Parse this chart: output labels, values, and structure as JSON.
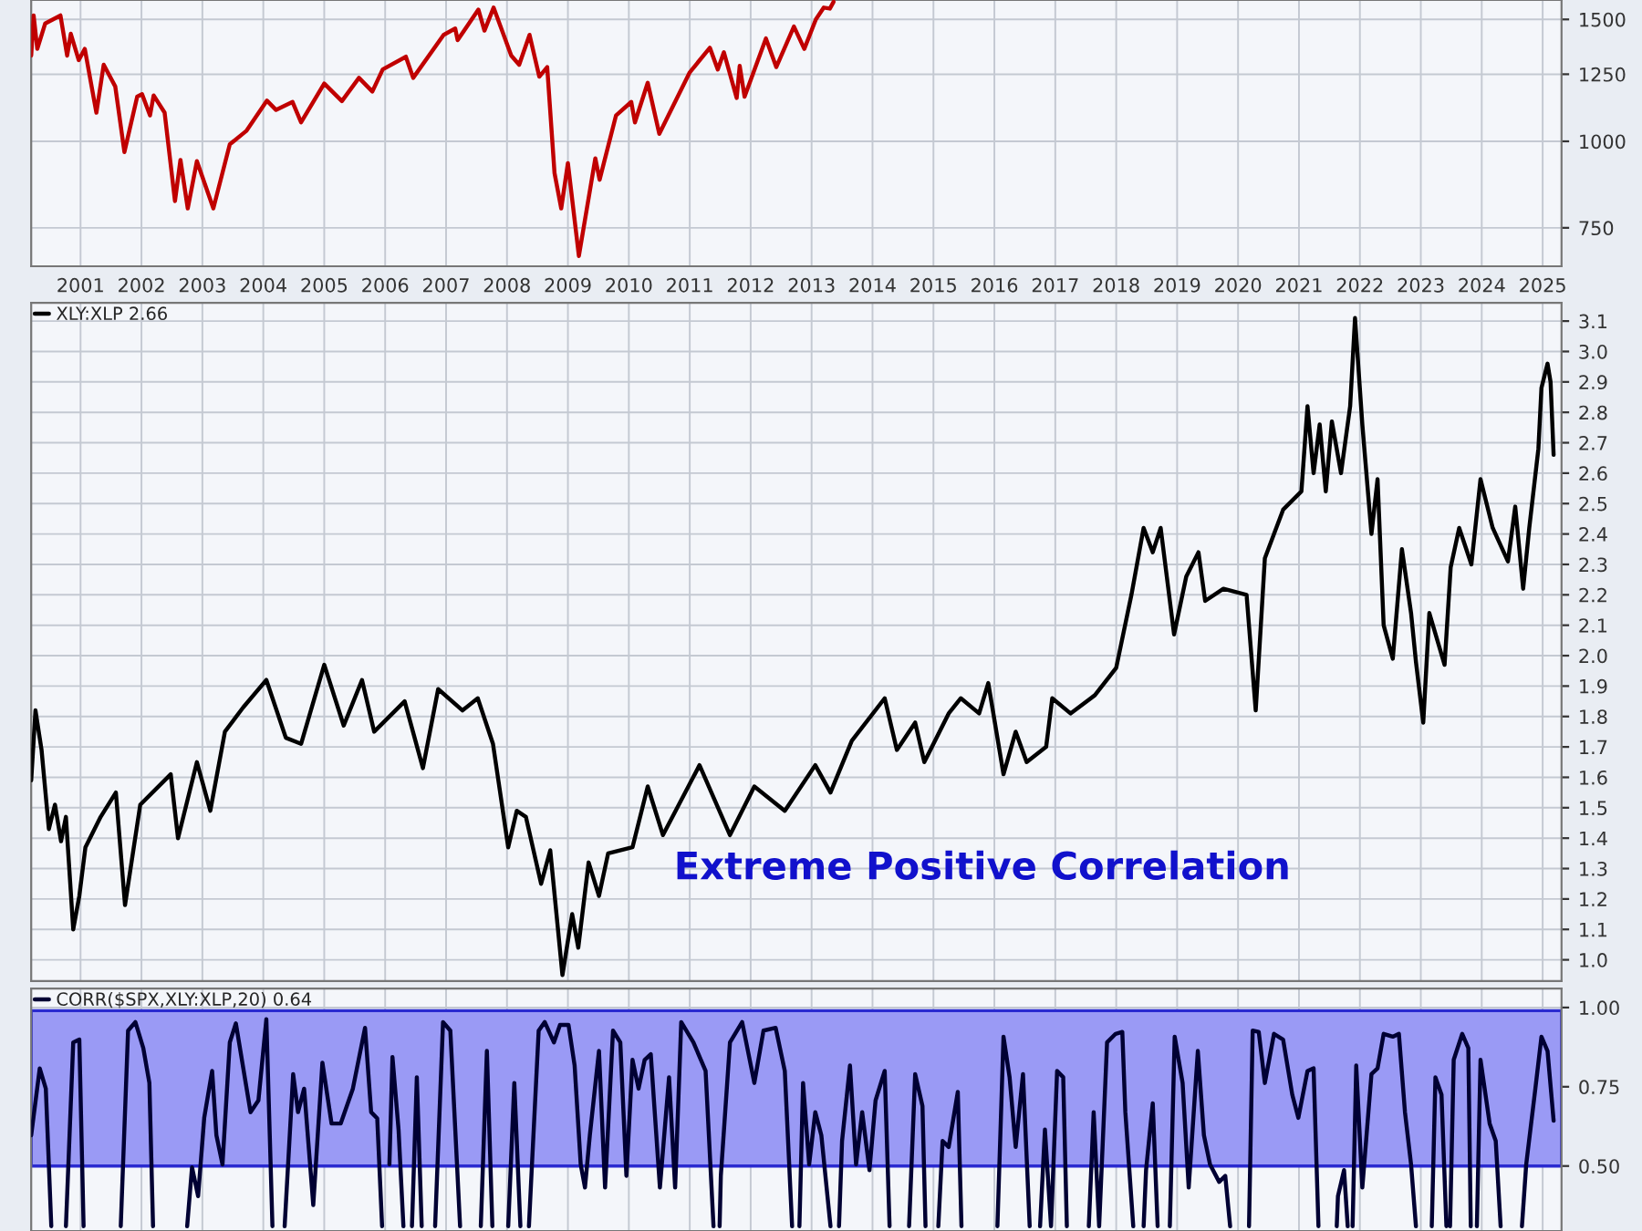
{
  "chart_data": [
    {
      "type": "line",
      "log": true,
      "grid": true,
      "xlim": [
        2000.19,
        2025.31
      ],
      "ylim": [
        660,
        1600
      ],
      "xticks": [
        2001,
        2002,
        2003,
        2004,
        2005,
        2006,
        2007,
        2008,
        2009,
        2010,
        2011,
        2012,
        2013,
        2014,
        2015,
        2016,
        2017,
        2018,
        2019,
        2020,
        2021,
        2022,
        2023,
        2024,
        2025
      ],
      "yticks": [
        750,
        1000,
        1250,
        1500
      ],
      "x": [
        2000.19,
        2000.23,
        2000.29,
        2000.42,
        2000.67,
        2000.78,
        2000.84,
        2000.97,
        2001.07,
        2001.26,
        2001.38,
        2001.57,
        2001.72,
        2001.93,
        2002.01,
        2002.14,
        2002.2,
        2002.38,
        2002.55,
        2002.64,
        2002.76,
        2002.91,
        2003.18,
        2003.45,
        2003.72,
        2004.06,
        2004.21,
        2004.48,
        2004.62,
        2005.0,
        2005.29,
        2005.57,
        2005.79,
        2005.96,
        2006.34,
        2006.46,
        2006.96,
        2007.15,
        2007.19,
        2007.53,
        2007.63,
        2007.78,
        2008.07,
        2008.2,
        2008.37,
        2008.53,
        2008.66,
        2008.78,
        2008.89,
        2009.0,
        2009.18,
        2009.45,
        2009.52,
        2009.79,
        2010.04,
        2010.1,
        2010.31,
        2010.5,
        2011.0,
        2011.33,
        2011.46,
        2011.56,
        2011.77,
        2011.82,
        2011.9,
        2012.25,
        2012.42,
        2012.71,
        2012.88,
        2013.07,
        2013.2,
        2013.3,
        2013.36
      ],
      "series": [
        {
          "color": "#c00000",
          "values": [
            1330,
            1520,
            1360,
            1480,
            1520,
            1330,
            1430,
            1310,
            1360,
            1100,
            1290,
            1200,
            965,
            1160,
            1170,
            1090,
            1165,
            1100,
            820,
            940,
            800,
            936,
            800,
            990,
            1035,
            1145,
            1110,
            1140,
            1065,
            1212,
            1143,
            1235,
            1180,
            1270,
            1325,
            1235,
            1425,
            1455,
            1400,
            1550,
            1445,
            1560,
            1330,
            1290,
            1425,
            1240,
            1280,
            900,
            800,
            930,
            683,
            945,
            880,
            1090,
            1140,
            1065,
            1215,
            1025,
            1258,
            1365,
            1270,
            1345,
            1155,
            1285,
            1160,
            1408,
            1280,
            1465,
            1360,
            1500,
            1560,
            1555,
            1590
          ]
        }
      ]
    },
    {
      "type": "line",
      "grid": true,
      "tick_labels": "y",
      "legend": "top left",
      "xlim": [
        2000.19,
        2025.31
      ],
      "ylim": [
        0.93,
        3.16
      ],
      "xticks": [
        2001,
        2002,
        2003,
        2004,
        2005,
        2006,
        2007,
        2008,
        2009,
        2010,
        2011,
        2012,
        2013,
        2014,
        2015,
        2016,
        2017,
        2018,
        2019,
        2020,
        2021,
        2022,
        2023,
        2024,
        2025
      ],
      "yticks": [
        {
          "value": 1,
          "label": "1.0"
        },
        1.1,
        1.2,
        1.3,
        1.4,
        1.5,
        1.6,
        1.7,
        1.8,
        1.9,
        {
          "value": 2,
          "label": "2.0"
        },
        2.1,
        2.2,
        2.3,
        2.4,
        2.5,
        2.6,
        2.7,
        2.8,
        2.9,
        {
          "value": 3,
          "label": "3.0"
        },
        3.1
      ],
      "annotations": [
        "Extreme Positive Correlation"
      ],
      "x": [
        2000.19,
        2000.26,
        2000.36,
        2000.48,
        2000.58,
        2000.68,
        2000.76,
        2000.88,
        2000.98,
        2001.08,
        2001.33,
        2001.58,
        2001.73,
        2001.98,
        2002.48,
        2002.6,
        2002.91,
        2003.13,
        2003.37,
        2003.67,
        2004.05,
        2004.37,
        2004.62,
        2005.0,
        2005.32,
        2005.62,
        2005.82,
        2006.32,
        2006.62,
        2006.87,
        2007.27,
        2007.52,
        2007.77,
        2008.02,
        2008.16,
        2008.31,
        2008.56,
        2008.71,
        2008.91,
        2009.07,
        2009.17,
        2009.34,
        2009.51,
        2009.66,
        2010.06,
        2010.31,
        2010.56,
        2011.16,
        2011.66,
        2012.06,
        2012.56,
        2013.06,
        2013.31,
        2013.66,
        2014.2,
        2014.4,
        2014.7,
        2014.85,
        2015.25,
        2015.45,
        2015.75,
        2015.9,
        2016.15,
        2016.35,
        2016.53,
        2016.85,
        2016.95,
        2017.25,
        2017.65,
        2018.0,
        2018.25,
        2018.45,
        2018.6,
        2018.73,
        2018.95,
        2019.15,
        2019.35,
        2019.46,
        2019.76,
        2020.14,
        2020.29,
        2020.44,
        2020.74,
        2021.04,
        2021.14,
        2021.24,
        2021.34,
        2021.44,
        2021.54,
        2021.69,
        2021.84,
        2021.92,
        2022.04,
        2022.19,
        2022.29,
        2022.39,
        2022.54,
        2022.69,
        2022.84,
        2022.92,
        2023.04,
        2023.14,
        2023.39,
        2023.49,
        2023.63,
        2023.83,
        2023.98,
        2024.18,
        2024.43,
        2024.55,
        2024.68,
        2024.78,
        2024.93,
        2024.98,
        2025.08,
        2025.13,
        2025.18
      ],
      "series": [
        {
          "name": "XLY:XLP 2.66",
          "color": "#000000",
          "values": [
            1.59,
            1.82,
            1.69,
            1.43,
            1.51,
            1.39,
            1.47,
            1.1,
            1.21,
            1.37,
            1.47,
            1.55,
            1.18,
            1.51,
            1.61,
            1.4,
            1.65,
            1.49,
            1.75,
            1.83,
            1.92,
            1.73,
            1.71,
            1.97,
            1.77,
            1.92,
            1.75,
            1.85,
            1.63,
            1.89,
            1.82,
            1.86,
            1.71,
            1.37,
            1.49,
            1.47,
            1.25,
            1.36,
            0.95,
            1.15,
            1.04,
            1.32,
            1.21,
            1.35,
            1.37,
            1.57,
            1.41,
            1.64,
            1.41,
            1.57,
            1.49,
            1.64,
            1.55,
            1.72,
            1.86,
            1.69,
            1.78,
            1.65,
            1.81,
            1.86,
            1.81,
            1.91,
            1.61,
            1.75,
            1.65,
            1.7,
            1.86,
            1.81,
            1.87,
            1.96,
            2.2,
            2.42,
            2.34,
            2.42,
            2.07,
            2.26,
            2.34,
            2.18,
            2.22,
            2.2,
            1.82,
            2.32,
            2.48,
            2.54,
            2.82,
            2.6,
            2.76,
            2.54,
            2.77,
            2.6,
            2.82,
            3.11,
            2.76,
            2.4,
            2.58,
            2.1,
            1.99,
            2.35,
            2.14,
            1.98,
            1.78,
            2.14,
            1.97,
            2.29,
            2.42,
            2.3,
            2.58,
            2.42,
            2.31,
            2.49,
            2.22,
            2.42,
            2.68,
            2.88,
            2.96,
            2.9,
            2.66
          ]
        }
      ]
    },
    {
      "type": "line",
      "grid": true,
      "tick_labels": "y",
      "legend": "top left",
      "xlim": [
        2000.19,
        2025.31
      ],
      "ylim": [
        0.295,
        1.06
      ],
      "xticks": [
        2001,
        2002,
        2003,
        2004,
        2005,
        2006,
        2007,
        2008,
        2009,
        2010,
        2011,
        2012,
        2013,
        2014,
        2015,
        2016,
        2017,
        2018,
        2019,
        2020,
        2021,
        2022,
        2023,
        2024,
        2025
      ],
      "yticks": [
        {
          "value": 0.5,
          "label": "0.50"
        },
        {
          "value": 0.75,
          "label": "0.75"
        },
        {
          "value": 1.0,
          "label": "1.00"
        }
      ],
      "bands": [
        {
          "axis": "y",
          "from": 0.5,
          "to": 0.99,
          "color": "#9a9af5"
        }
      ],
      "x": [
        2000.19,
        2000.33,
        2000.43,
        2000.52,
        2000.56,
        2000.76,
        2000.88,
        2000.98,
        2001.05,
        2001.08,
        2001.66,
        2001.78,
        2001.9,
        2002.03,
        2002.13,
        2002.19,
        2002.22,
        2002.75,
        2002.83,
        2002.93,
        2003.03,
        2003.16,
        2003.23,
        2003.33,
        2003.45,
        2003.55,
        2003.79,
        2003.92,
        2004.05,
        2004.15,
        2004.17,
        2004.35,
        2004.49,
        2004.57,
        2004.67,
        2004.82,
        2004.97,
        2005.12,
        2005.27,
        2005.47,
        2005.67,
        2005.77,
        2005.87,
        2005.95,
        2005.97,
        2006.07,
        2006.12,
        2006.22,
        2006.3,
        2006.32,
        2006.44,
        2006.52,
        2006.6,
        2006.62,
        2006.82,
        2006.95,
        2007.07,
        2007.23,
        2007.25,
        2007.57,
        2007.67,
        2007.76,
        2007.77,
        2008.02,
        2008.12,
        2008.22,
        2008.24,
        2008.36,
        2008.41,
        2008.52,
        2008.62,
        2008.77,
        2008.87,
        2009.01,
        2009.11,
        2009.21,
        2009.28,
        2009.36,
        2009.51,
        2009.61,
        2009.74,
        2009.86,
        2009.96,
        2010.06,
        2010.16,
        2010.26,
        2010.36,
        2010.51,
        2010.66,
        2010.76,
        2010.86,
        2011.06,
        2011.26,
        2011.39,
        2011.41,
        2011.49,
        2011.51,
        2011.66,
        2011.86,
        2012.06,
        2012.21,
        2012.41,
        2012.56,
        2012.68,
        2012.71,
        2012.8,
        2012.86,
        2012.96,
        2013.06,
        2013.16,
        2013.31,
        2013.35,
        2013.45,
        2013.5,
        2013.63,
        2013.73,
        2013.83,
        2013.95,
        2014.05,
        2014.2,
        2014.28,
        2014.3,
        2014.6,
        2014.7,
        2014.82,
        2014.87,
        2014.88,
        2015.08,
        2015.15,
        2015.25,
        2015.4,
        2015.46,
        2015.47,
        2016.05,
        2016.15,
        2016.25,
        2016.35,
        2016.47,
        2016.58,
        2016.6,
        2016.75,
        2016.83,
        2016.93,
        2017.03,
        2017.13,
        2017.19,
        2017.2,
        2017.55,
        2017.63,
        2017.72,
        2017.85,
        2017.99,
        2018.1,
        2018.15,
        2018.28,
        2018.3,
        2018.45,
        2018.49,
        2018.6,
        2018.68,
        2018.7,
        2018.88,
        2018.96,
        2019.09,
        2019.19,
        2019.34,
        2019.44,
        2019.54,
        2019.69,
        2019.79,
        2019.87,
        2019.89,
        2020.18,
        2020.24,
        2020.34,
        2020.44,
        2020.59,
        2020.74,
        2020.89,
        2020.99,
        2021.14,
        2021.24,
        2021.32,
        2021.34,
        2021.62,
        2021.64,
        2021.74,
        2021.8,
        2021.84,
        2021.88,
        2021.94,
        2022.04,
        2022.19,
        2022.29,
        2022.39,
        2022.54,
        2022.64,
        2022.74,
        2022.84,
        2022.92,
        2022.94,
        2023.18,
        2023.24,
        2023.34,
        2023.42,
        2023.44,
        2023.48,
        2023.54,
        2023.68,
        2023.78,
        2023.82,
        2023.84,
        2023.92,
        2023.98,
        2024.13,
        2024.23,
        2024.31,
        2024.33,
        2024.66,
        2024.73,
        2024.88,
        2024.98,
        2025.08,
        2025.18
      ],
      "series": [
        {
          "name": "CORR($SPX,XLY:XLP,20) 0.64",
          "color": "#000033",
          "values": [
            0.597,
            0.808,
            0.744,
            0.31,
            null,
            0.31,
            0.89,
            0.899,
            0.31,
            null,
            0.31,
            0.927,
            0.954,
            0.872,
            0.762,
            0.31,
            null,
            0.31,
            0.496,
            0.405,
            0.652,
            0.8,
            0.597,
            0.505,
            0.89,
            0.95,
            0.67,
            0.707,
            0.963,
            0.31,
            null,
            0.31,
            0.79,
            0.67,
            0.744,
            0.377,
            0.826,
            0.634,
            0.634,
            0.744,
            0.936,
            0.67,
            0.65,
            0.31,
            null,
            0.505,
            0.844,
            0.615,
            0.31,
            null,
            0.31,
            0.78,
            0.31,
            null,
            0.31,
            0.954,
            0.927,
            0.31,
            null,
            0.31,
            0.863,
            0.31,
            null,
            0.31,
            0.762,
            0.31,
            null,
            0.31,
            0.505,
            0.927,
            0.954,
            0.89,
            0.945,
            0.945,
            0.817,
            0.505,
            0.432,
            0.597,
            0.863,
            0.432,
            0.927,
            0.89,
            0.469,
            0.835,
            0.744,
            0.835,
            0.853,
            0.432,
            0.78,
            0.432,
            0.954,
            0.89,
            0.8,
            0.31,
            null,
            0.31,
            0.469,
            0.89,
            0.954,
            0.762,
            0.927,
            0.936,
            0.8,
            0.31,
            null,
            0.31,
            0.762,
            0.505,
            0.67,
            0.597,
            0.31,
            null,
            0.31,
            0.579,
            0.817,
            0.505,
            0.67,
            0.487,
            0.707,
            0.8,
            0.31,
            null,
            0.31,
            0.79,
            0.689,
            0.31,
            null,
            0.31,
            0.579,
            0.56,
            0.734,
            0.31,
            null,
            0.31,
            0.908,
            0.78,
            0.56,
            0.79,
            0.31,
            null,
            0.31,
            0.615,
            0.31,
            0.8,
            0.78,
            0.31,
            null,
            0.31,
            0.67,
            0.31,
            0.89,
            0.917,
            0.923,
            0.67,
            0.31,
            null,
            0.31,
            0.487,
            0.698,
            0.31,
            null,
            0.31,
            0.908,
            0.762,
            0.432,
            0.863,
            0.597,
            0.505,
            0.45,
            0.469,
            0.31,
            null,
            0.31,
            0.927,
            0.923,
            0.762,
            0.917,
            0.899,
            0.725,
            0.652,
            0.8,
            0.808,
            0.31,
            null,
            0.31,
            0.405,
            0.487,
            0.31,
            null,
            0.31,
            0.817,
            0.432,
            0.79,
            0.808,
            0.917,
            0.908,
            0.917,
            0.67,
            0.505,
            0.31,
            null,
            0.31,
            0.78,
            0.725,
            0.31,
            null,
            0.31,
            0.835,
            0.917,
            0.872,
            0.31,
            null,
            0.31,
            0.835,
            0.634,
            0.579,
            0.31,
            null,
            0.31,
            0.505,
            0.744,
            0.908,
            0.863,
            0.643
          ]
        }
      ]
    }
  ]
}
